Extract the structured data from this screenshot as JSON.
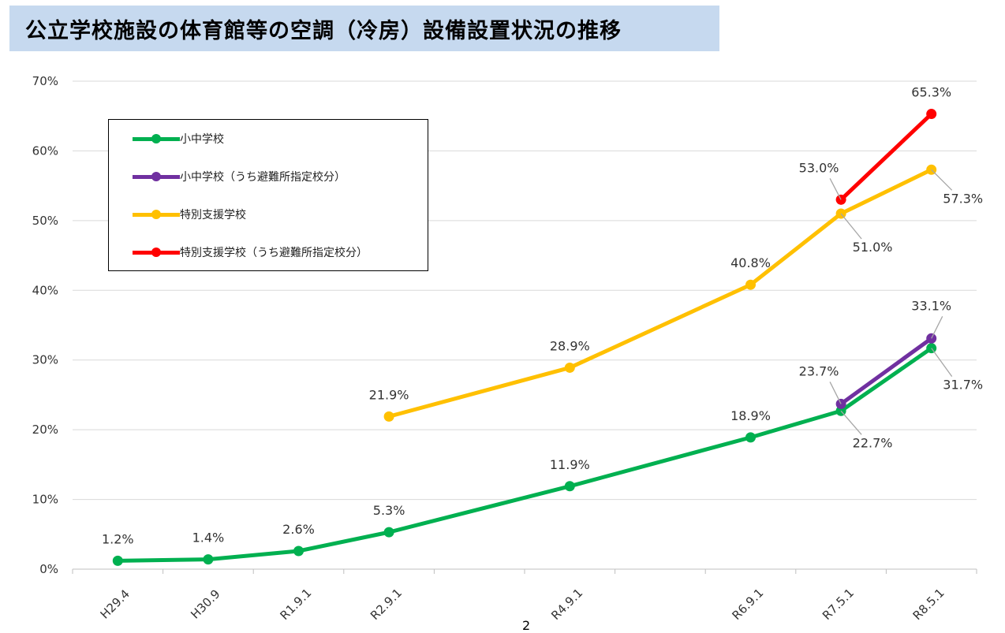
{
  "title": "公立学校施設の体育館等の空調（冷房）設備設置状況の推移",
  "page_mark": "2",
  "chart_data": {
    "type": "line",
    "title": "公立学校施設の体育館等の空調（冷房）設備設置状況の推移",
    "xlabel": "",
    "ylabel": "",
    "x": [
      "H29.4",
      "H30.9",
      "R1.9.1",
      "R2.9.1",
      "R4.9.1",
      "R6.9.1",
      "R7.5.1",
      "R8.5.1"
    ],
    "x_positions": [
      0,
      1,
      2,
      3,
      5,
      7,
      8,
      9
    ],
    "ylim": [
      0,
      70
    ],
    "yticks": [
      0,
      10,
      20,
      30,
      40,
      50,
      60,
      70
    ],
    "ytick_labels": [
      "0%",
      "10%",
      "20%",
      "30%",
      "40%",
      "50%",
      "60%",
      "70%"
    ],
    "grid": true,
    "legend_position": "top-left",
    "series": [
      {
        "name": "小中学校",
        "color": "#00b050",
        "values": [
          1.2,
          1.4,
          2.6,
          5.3,
          11.9,
          18.9,
          22.7,
          31.7
        ],
        "labels": [
          "1.2%",
          "1.4%",
          "2.6%",
          "5.3%",
          "11.9%",
          "18.9%",
          "22.7%",
          "31.7%"
        ]
      },
      {
        "name": "小中学校（うち避難所指定校分）",
        "color": "#7030a0",
        "values": [
          null,
          null,
          null,
          null,
          null,
          null,
          23.7,
          33.1
        ],
        "labels": [
          null,
          null,
          null,
          null,
          null,
          null,
          "23.7%",
          "33.1%"
        ]
      },
      {
        "name": "特別支援学校",
        "color": "#ffc000",
        "values": [
          null,
          null,
          null,
          21.9,
          28.9,
          40.8,
          51.0,
          57.3
        ],
        "labels": [
          null,
          null,
          null,
          "21.9%",
          "28.9%",
          "40.8%",
          "51.0%",
          "57.3%"
        ]
      },
      {
        "name": "特別支援学校（うち避難所指定校分）",
        "color": "#ff0000",
        "values": [
          null,
          null,
          null,
          null,
          null,
          null,
          53.0,
          65.3
        ],
        "labels": [
          null,
          null,
          null,
          null,
          null,
          null,
          "53.0%",
          "65.3%"
        ]
      }
    ]
  }
}
